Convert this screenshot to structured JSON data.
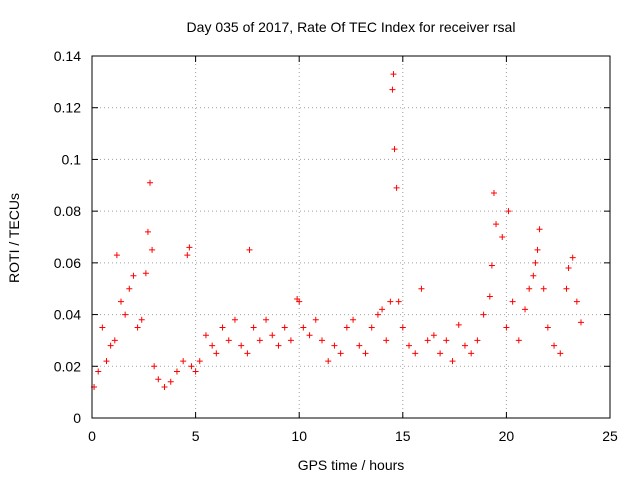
{
  "chart_data": {
    "type": "scatter",
    "title": "Day 035 of 2017, Rate Of TEC Index for receiver rsal",
    "xlabel": "GPS time / hours",
    "ylabel": "ROTI / TECUs",
    "xlim": [
      0,
      25
    ],
    "ylim": [
      0,
      0.14
    ],
    "x_ticks": [
      0,
      5,
      10,
      15,
      20,
      25
    ],
    "x_tick_labels": [
      "0",
      "5",
      "10",
      "15",
      "20",
      "25"
    ],
    "y_ticks": [
      0,
      0.02,
      0.04,
      0.06,
      0.08,
      0.1,
      0.12,
      0.14
    ],
    "y_tick_labels": [
      "0",
      "0.02",
      "0.04",
      "0.06",
      "0.08",
      "0.1",
      "0.12",
      "0.14"
    ],
    "grid": true,
    "marker": "+",
    "color": "#ff0000",
    "series": [
      {
        "x": [
          0.1,
          0.3,
          0.5,
          0.7,
          0.9,
          1.1,
          1.2,
          1.4,
          1.6,
          1.8,
          2.0,
          2.2,
          2.4,
          2.6,
          2.7,
          2.8,
          2.9,
          3.0,
          3.2,
          3.5,
          3.8,
          4.1,
          4.4,
          4.6,
          4.7,
          4.8,
          5.0,
          5.2,
          5.5,
          5.8,
          6.0,
          6.3,
          6.6,
          6.9,
          7.2,
          7.5,
          7.6,
          7.8,
          8.1,
          8.4,
          8.7,
          9.0,
          9.3,
          9.6,
          9.9,
          10.0,
          10.2,
          10.5,
          10.8,
          11.1,
          11.4,
          11.7,
          12.0,
          12.3,
          12.6,
          12.9,
          13.2,
          13.5,
          13.8,
          14.0,
          14.2,
          14.4,
          14.5,
          14.55,
          14.6,
          14.7,
          14.8,
          15.0,
          15.3,
          15.6,
          15.9,
          16.2,
          16.5,
          16.8,
          17.1,
          17.4,
          17.7,
          18.0,
          18.3,
          18.6,
          18.9,
          19.2,
          19.3,
          19.4,
          19.5,
          19.8,
          20.0,
          20.1,
          20.3,
          20.6,
          20.9,
          21.1,
          21.3,
          21.4,
          21.5,
          21.6,
          21.8,
          22.0,
          22.3,
          22.6,
          22.9,
          23.0,
          23.2,
          23.4,
          23.6
        ],
        "y": [
          0.012,
          0.018,
          0.035,
          0.022,
          0.028,
          0.03,
          0.063,
          0.045,
          0.04,
          0.05,
          0.055,
          0.035,
          0.038,
          0.056,
          0.072,
          0.091,
          0.065,
          0.02,
          0.015,
          0.012,
          0.014,
          0.018,
          0.022,
          0.063,
          0.066,
          0.02,
          0.018,
          0.022,
          0.032,
          0.028,
          0.025,
          0.035,
          0.03,
          0.038,
          0.028,
          0.025,
          0.065,
          0.035,
          0.03,
          0.038,
          0.032,
          0.028,
          0.035,
          0.03,
          0.046,
          0.045,
          0.035,
          0.032,
          0.038,
          0.03,
          0.022,
          0.028,
          0.025,
          0.035,
          0.038,
          0.028,
          0.025,
          0.035,
          0.04,
          0.042,
          0.03,
          0.045,
          0.127,
          0.133,
          0.104,
          0.089,
          0.045,
          0.035,
          0.028,
          0.025,
          0.05,
          0.03,
          0.032,
          0.025,
          0.03,
          0.022,
          0.036,
          0.028,
          0.025,
          0.03,
          0.04,
          0.047,
          0.059,
          0.087,
          0.075,
          0.07,
          0.035,
          0.08,
          0.045,
          0.03,
          0.042,
          0.05,
          0.055,
          0.06,
          0.065,
          0.073,
          0.05,
          0.035,
          0.028,
          0.025,
          0.05,
          0.058,
          0.062,
          0.045,
          0.037
        ]
      }
    ]
  }
}
